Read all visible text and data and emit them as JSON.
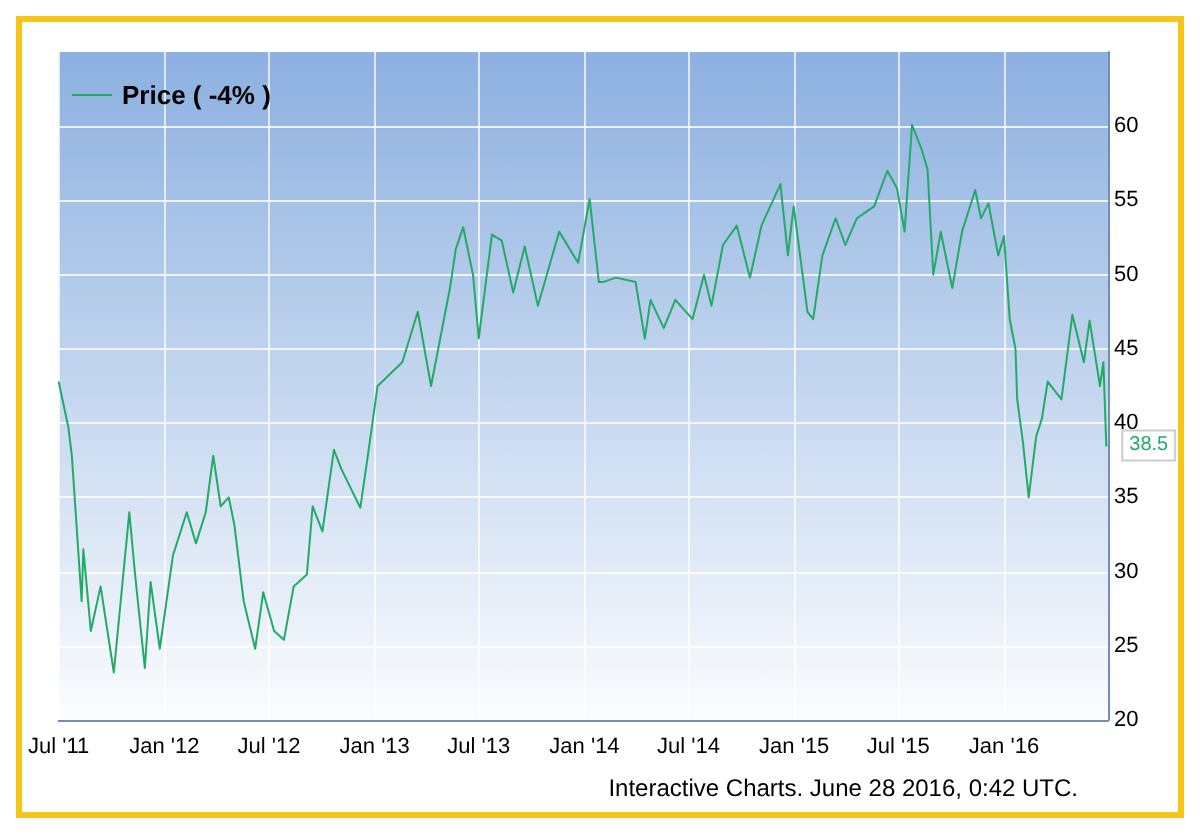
{
  "chart_data": {
    "type": "line",
    "legend": "top left",
    "grid": true,
    "marker": "none",
    "line_style": "solid",
    "xlim": [
      "2011-07-01",
      "2016-06-30"
    ],
    "ylim": [
      20,
      65
    ],
    "xticks": [
      {
        "value": "2011-07-01",
        "label": "Jul '11"
      },
      {
        "value": "2012-01-01",
        "label": "Jan '12"
      },
      {
        "value": "2012-07-01",
        "label": "Jul '12"
      },
      {
        "value": "2013-01-01",
        "label": "Jan '13"
      },
      {
        "value": "2013-07-01",
        "label": "Jul '13"
      },
      {
        "value": "2014-01-01",
        "label": "Jan '14"
      },
      {
        "value": "2014-07-01",
        "label": "Jul '14"
      },
      {
        "value": "2015-01-01",
        "label": "Jan '15"
      },
      {
        "value": "2015-07-01",
        "label": "Jul '15"
      },
      {
        "value": "2016-01-01",
        "label": "Jan '16"
      }
    ],
    "yticks": [
      20,
      25,
      30,
      35,
      40,
      45,
      50,
      55,
      60
    ],
    "annotations": [
      {
        "text": "38.5",
        "x": "2016-06-27",
        "y": 38.5
      },
      "Interactive Charts. June 28 2016, 0:42 UTC."
    ],
    "x": [
      "2011-07-01",
      "2011-07-18",
      "2011-07-24",
      "2011-08-10",
      "2011-08-13",
      "2011-08-26",
      "2011-09-12",
      "2011-10-05",
      "2011-11-01",
      "2011-11-11",
      "2011-11-28",
      "2011-12-08",
      "2011-12-24",
      "2012-01-16",
      "2012-02-09",
      "2012-02-25",
      "2012-03-13",
      "2012-03-26",
      "2012-04-08",
      "2012-04-22",
      "2012-05-02",
      "2012-05-18",
      "2012-06-07",
      "2012-06-21",
      "2012-07-10",
      "2012-07-27",
      "2012-08-13",
      "2012-09-05",
      "2012-09-15",
      "2012-10-02",
      "2012-10-22",
      "2012-11-04",
      "2012-12-07",
      "2012-12-20",
      "2013-01-06",
      "2013-02-18",
      "2013-03-17",
      "2013-04-09",
      "2013-05-12",
      "2013-05-22",
      "2013-06-04",
      "2013-06-21",
      "2013-07-01",
      "2013-07-24",
      "2013-08-10",
      "2013-08-30",
      "2013-09-19",
      "2013-10-12",
      "2013-11-18",
      "2013-12-21",
      "2014-01-10",
      "2014-01-26",
      "2014-02-02",
      "2014-02-25",
      "2014-03-31",
      "2014-04-16",
      "2014-04-26",
      "2014-05-19",
      "2014-06-08",
      "2014-07-08",
      "2014-07-28",
      "2014-08-10",
      "2014-08-30",
      "2014-09-23",
      "2014-10-16",
      "2014-11-05",
      "2014-12-08",
      "2014-12-21",
      "2014-12-31",
      "2015-01-24",
      "2015-02-03",
      "2015-02-19",
      "2015-03-14",
      "2015-03-31",
      "2015-04-20",
      "2015-05-20",
      "2015-06-12",
      "2015-06-29",
      "2015-07-12",
      "2015-07-25",
      "2015-08-11",
      "2015-08-21",
      "2015-08-31",
      "2015-09-13",
      "2015-10-03",
      "2015-10-20",
      "2015-11-12",
      "2015-11-22",
      "2015-12-05",
      "2015-12-22",
      "2016-01-01",
      "2016-01-11",
      "2016-01-21",
      "2016-01-24",
      "2016-02-03",
      "2016-02-13",
      "2016-02-26",
      "2016-03-07",
      "2016-03-17",
      "2016-04-10",
      "2016-04-29",
      "2016-05-19",
      "2016-05-29",
      "2016-06-16",
      "2016-06-22",
      "2016-06-27"
    ],
    "series": [
      {
        "name": "Price ( -4% )",
        "color": "#22aa66",
        "values": [
          42.8,
          39.7,
          37.8,
          28,
          31.5,
          26,
          29,
          23.2,
          34,
          29.8,
          23.5,
          29.3,
          24.8,
          31.1,
          34,
          31.9,
          34,
          37.8,
          34.4,
          35,
          33.1,
          28,
          24.8,
          28.6,
          26,
          25.4,
          29,
          29.8,
          34.4,
          32.7,
          38.2,
          36.9,
          34.3,
          37.8,
          42.5,
          44.1,
          47.5,
          42.5,
          49.1,
          51.7,
          53.2,
          50,
          45.7,
          52.7,
          52.3,
          48.8,
          51.9,
          47.9,
          52.9,
          50.8,
          55.1,
          49.5,
          49.5,
          49.8,
          49.5,
          45.7,
          48.3,
          46.4,
          48.3,
          47,
          50,
          47.9,
          52,
          53.3,
          49.8,
          53.3,
          56.1,
          51.3,
          54.6,
          47.5,
          47,
          51.3,
          53.8,
          52,
          53.8,
          54.6,
          57,
          55.8,
          52.9,
          60.1,
          58.4,
          57.1,
          50,
          52.9,
          49.1,
          52.9,
          55.7,
          53.8,
          54.8,
          51.3,
          52.6,
          47,
          45,
          41.6,
          38.7,
          35,
          39.1,
          40.3,
          42.8,
          41.6,
          47.3,
          44.1,
          46.9,
          42.5,
          44.1,
          38.5
        ]
      }
    ]
  }
}
